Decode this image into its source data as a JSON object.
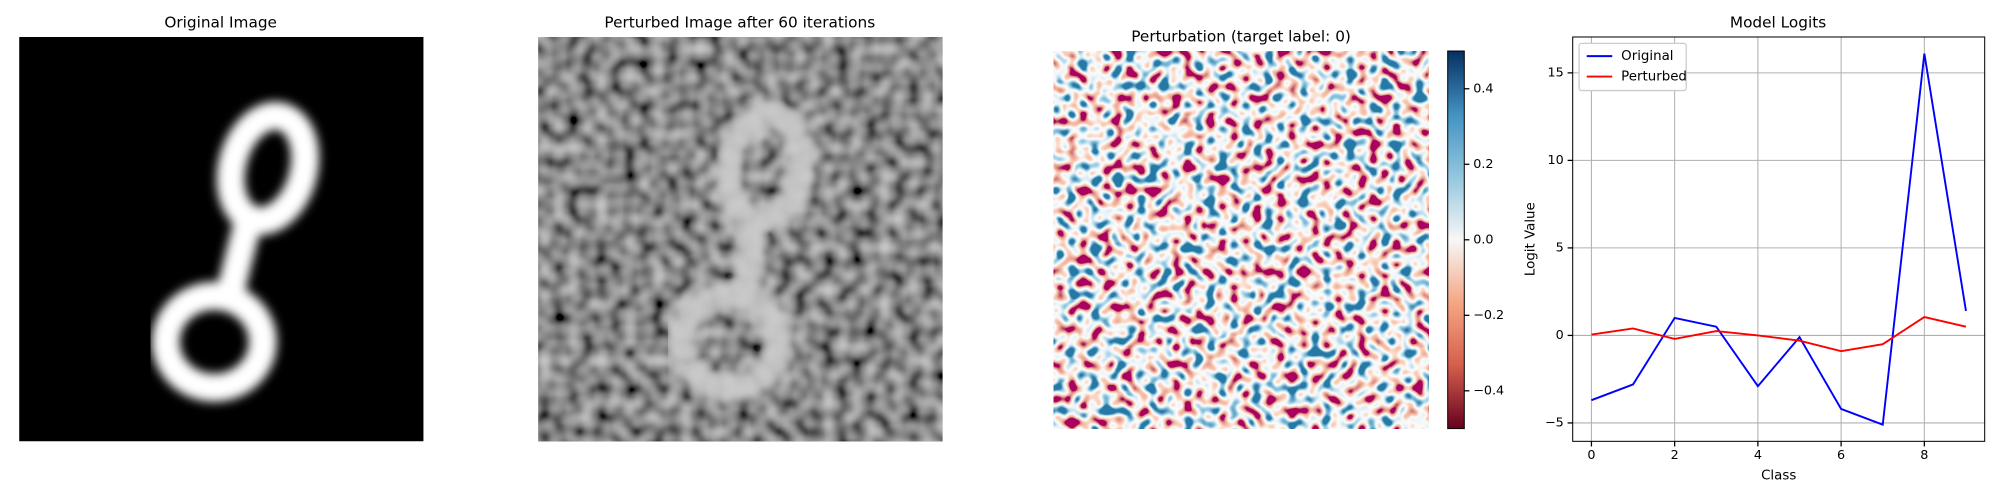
{
  "chart_data": [
    {
      "type": "image",
      "title": "Original Image"
    },
    {
      "type": "image",
      "title": "Perturbed Image after 60 iterations"
    },
    {
      "type": "heatmap",
      "title": "Perturbation (target label: 0)",
      "clim": [
        -0.5,
        0.5
      ],
      "cticks": [
        {
          "value": -0.4,
          "label": "−0.4"
        },
        {
          "value": -0.2,
          "label": "−0.2"
        },
        {
          "value": 0.0,
          "label": "0.0"
        },
        0.2,
        0.4
      ]
    },
    {
      "type": "line",
      "title": "Model Logits",
      "xlabel": "Class",
      "ylabel": "Logit Value",
      "x": [
        0,
        1,
        2,
        3,
        4,
        5,
        6,
        7,
        8,
        9
      ],
      "series": [
        {
          "name": "Original",
          "color": "#0000ff",
          "values": [
            -3.7,
            -2.8,
            1.0,
            0.5,
            -2.9,
            -0.1,
            -4.2,
            -5.1,
            16.1,
            1.4
          ]
        },
        {
          "name": "Perturbed",
          "color": "#ff0000",
          "values": [
            0.05,
            0.4,
            -0.2,
            0.25,
            0.0,
            -0.3,
            -0.9,
            -0.5,
            1.05,
            0.5
          ]
        }
      ],
      "xlim": [
        -0.45,
        9.45
      ],
      "ylim": [
        -6.05,
        17.05
      ],
      "xticks": [
        0,
        2,
        4,
        6,
        8
      ],
      "yticks": [
        {
          "value": -5,
          "label": "−5"
        },
        0,
        5,
        10,
        15
      ],
      "grid": true,
      "legend": "upper left"
    }
  ]
}
